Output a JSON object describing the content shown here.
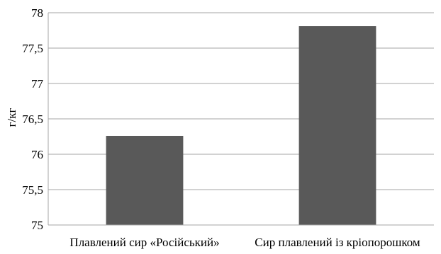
{
  "chart_data": {
    "type": "bar",
    "title": "",
    "xlabel": "",
    "ylabel": "г/кг",
    "categories": [
      "Плавлений сир «Російський»",
      "Сир плавлений із кріопорошком"
    ],
    "values": [
      76.26,
      77.81
    ],
    "ylim": [
      75,
      78
    ],
    "yticks": [
      75,
      75.5,
      76,
      76.5,
      77,
      77.5,
      78
    ],
    "ytick_labels": [
      "75",
      "75,5",
      "76",
      "76,5",
      "77",
      "77,5",
      "78"
    ],
    "grid": true,
    "legend": "none",
    "bar_color": "#595959",
    "grid_color": "#a6a6a6"
  }
}
